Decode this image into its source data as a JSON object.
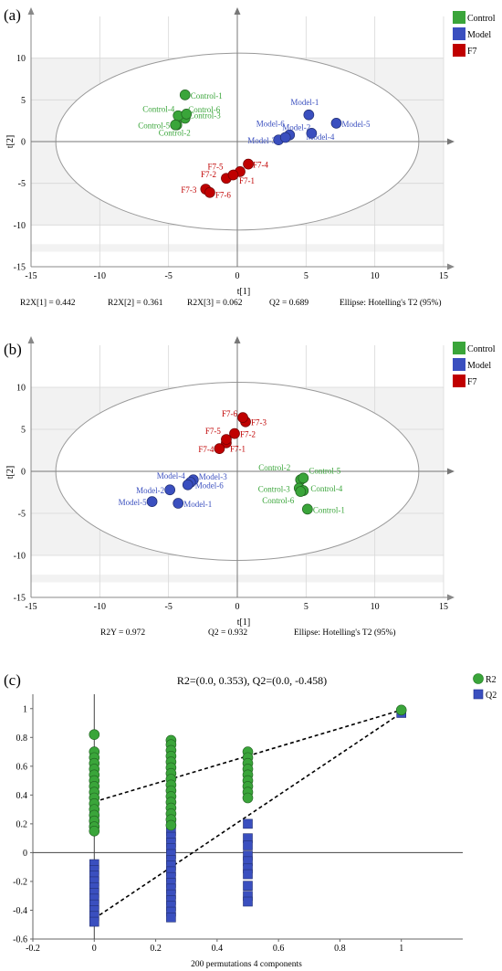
{
  "colors": {
    "control": "#3aa53a",
    "model": "#3a4fbf",
    "f7": "#c00000",
    "r2": "#3aa53a",
    "q2": "#3a4fbf"
  },
  "panels": {
    "a": {
      "label": "(a)",
      "legend": [
        "Control",
        "Model",
        "F7"
      ]
    },
    "b": {
      "label": "(b)",
      "legend": [
        "Control",
        "Model",
        "F7"
      ]
    },
    "c": {
      "label": "(c)"
    }
  },
  "chart_data": [
    {
      "id": "a",
      "type": "scatter",
      "xlabel": "t[1]",
      "ylabel": "t[2]",
      "xlim": [
        -15,
        15
      ],
      "ylim": [
        -15,
        15
      ],
      "xticks": [
        -15,
        -10,
        -5,
        0,
        5,
        10,
        15
      ],
      "yticks": [
        -15,
        -10,
        -5,
        0,
        5,
        10
      ],
      "ellipse": {
        "rx": 13.2,
        "ry": 10.6
      },
      "stats": [
        "R2X[1] = 0.442",
        "R2X[2] = 0.361",
        "R2X[3] = 0.062",
        "Q2 = 0.689",
        "Ellipse: Hotelling's T2 (95%)"
      ],
      "series": [
        {
          "name": "Control",
          "color": "#3aa53a",
          "points": [
            {
              "label": "Control-1",
              "x": -3.8,
              "y": 5.6
            },
            {
              "label": "Control-2",
              "x": -4.4,
              "y": 2.0
            },
            {
              "label": "Control-3",
              "x": -3.8,
              "y": 2.8
            },
            {
              "label": "Control-4",
              "x": -4.3,
              "y": 3.1
            },
            {
              "label": "Control-5",
              "x": -4.5,
              "y": 2.0
            },
            {
              "label": "Control-6",
              "x": -3.7,
              "y": 3.3
            }
          ]
        },
        {
          "name": "Model",
          "color": "#3a4fbf",
          "points": [
            {
              "label": "Model-1",
              "x": 5.2,
              "y": 3.2
            },
            {
              "label": "Model-2",
              "x": 3.8,
              "y": 0.8
            },
            {
              "label": "Model-3",
              "x": 3.0,
              "y": 0.2
            },
            {
              "label": "Model-4",
              "x": 5.4,
              "y": 1.0
            },
            {
              "label": "Model-5",
              "x": 7.2,
              "y": 2.2
            },
            {
              "label": "Model-6",
              "x": 3.5,
              "y": 0.5
            }
          ]
        },
        {
          "name": "F7",
          "color": "#c00000",
          "points": [
            {
              "label": "F7-1",
              "x": 0.2,
              "y": -3.6
            },
            {
              "label": "F7-2",
              "x": -0.8,
              "y": -4.4
            },
            {
              "label": "F7-3",
              "x": -2.3,
              "y": -5.7
            },
            {
              "label": "F7-4",
              "x": 0.8,
              "y": -2.7
            },
            {
              "label": "F7-5",
              "x": -0.3,
              "y": -4.0
            },
            {
              "label": "F7-6",
              "x": -2.0,
              "y": -6.1
            }
          ]
        }
      ]
    },
    {
      "id": "b",
      "type": "scatter",
      "xlabel": "t[1]",
      "ylabel": "t[2]",
      "xlim": [
        -15,
        15
      ],
      "ylim": [
        -15,
        15
      ],
      "xticks": [
        -15,
        -10,
        -5,
        0,
        5,
        10,
        15
      ],
      "yticks": [
        -15,
        -10,
        -5,
        0,
        5,
        10
      ],
      "ellipse": {
        "rx": 13.2,
        "ry": 10.6
      },
      "stats": [
        "R2Y = 0.972",
        "Q2 = 0.932",
        "Ellipse: Hotelling's T2 (95%)"
      ],
      "series": [
        {
          "name": "Control",
          "color": "#3aa53a",
          "points": [
            {
              "label": "Control-1",
              "x": 5.1,
              "y": -4.5
            },
            {
              "label": "Control-2",
              "x": 4.6,
              "y": -1.0
            },
            {
              "label": "Control-3",
              "x": 4.5,
              "y": -2.0
            },
            {
              "label": "Control-4",
              "x": 4.8,
              "y": -2.3
            },
            {
              "label": "Control-5",
              "x": 4.8,
              "y": -0.8
            },
            {
              "label": "Control-6",
              "x": 4.6,
              "y": -2.4
            }
          ]
        },
        {
          "name": "Model",
          "color": "#3a4fbf",
          "points": [
            {
              "label": "Model-1",
              "x": -4.3,
              "y": -3.8
            },
            {
              "label": "Model-2",
              "x": -4.9,
              "y": -2.2
            },
            {
              "label": "Model-3",
              "x": -3.2,
              "y": -1.0
            },
            {
              "label": "Model-4",
              "x": -3.4,
              "y": -1.3
            },
            {
              "label": "Model-5",
              "x": -6.2,
              "y": -3.6
            },
            {
              "label": "Model-6",
              "x": -3.6,
              "y": -1.6
            }
          ]
        },
        {
          "name": "F7",
          "color": "#c00000",
          "points": [
            {
              "label": "F7-1",
              "x": -0.8,
              "y": 3.4
            },
            {
              "label": "F7-2",
              "x": -0.2,
              "y": 4.5
            },
            {
              "label": "F7-3",
              "x": 0.6,
              "y": 5.9
            },
            {
              "label": "F7-4",
              "x": -1.3,
              "y": 2.7
            },
            {
              "label": "F7-5",
              "x": -0.8,
              "y": 3.8
            },
            {
              "label": "F7-6",
              "x": 0.4,
              "y": 6.4
            }
          ]
        }
      ]
    },
    {
      "id": "c",
      "type": "scatter",
      "title": "R2=(0.0, 0.353), Q2=(0.0, -0.458)",
      "xlabel": "200 permutations 4 components",
      "xlim": [
        -0.2,
        1.2
      ],
      "ylim": [
        -0.6,
        1.1
      ],
      "xticks": [
        -0.2,
        0,
        0.2,
        0.4,
        0.6,
        0.8,
        1
      ],
      "yticks": [
        -0.6,
        -0.4,
        -0.2,
        0,
        0.2,
        0.4,
        0.6,
        0.8,
        1
      ],
      "legend": [
        "R2",
        "Q2"
      ],
      "series": [
        {
          "name": "R2",
          "color": "#3aa53a",
          "marker": "circle",
          "points": [
            {
              "x": 0,
              "y": 0.82
            },
            {
              "x": 0,
              "y": 0.7
            },
            {
              "x": 0,
              "y": 0.66
            },
            {
              "x": 0,
              "y": 0.62
            },
            {
              "x": 0,
              "y": 0.58
            },
            {
              "x": 0,
              "y": 0.54
            },
            {
              "x": 0,
              "y": 0.5
            },
            {
              "x": 0,
              "y": 0.46
            },
            {
              "x": 0,
              "y": 0.42
            },
            {
              "x": 0,
              "y": 0.38
            },
            {
              "x": 0,
              "y": 0.34
            },
            {
              "x": 0,
              "y": 0.3
            },
            {
              "x": 0,
              "y": 0.26
            },
            {
              "x": 0,
              "y": 0.22
            },
            {
              "x": 0,
              "y": 0.18
            },
            {
              "x": 0,
              "y": 0.15
            },
            {
              "x": 0.25,
              "y": 0.78
            },
            {
              "x": 0.25,
              "y": 0.75
            },
            {
              "x": 0.25,
              "y": 0.71
            },
            {
              "x": 0.25,
              "y": 0.67
            },
            {
              "x": 0.25,
              "y": 0.63
            },
            {
              "x": 0.25,
              "y": 0.59
            },
            {
              "x": 0.25,
              "y": 0.55
            },
            {
              "x": 0.25,
              "y": 0.51
            },
            {
              "x": 0.25,
              "y": 0.47
            },
            {
              "x": 0.25,
              "y": 0.43
            },
            {
              "x": 0.25,
              "y": 0.39
            },
            {
              "x": 0.25,
              "y": 0.35
            },
            {
              "x": 0.25,
              "y": 0.31
            },
            {
              "x": 0.25,
              "y": 0.27
            },
            {
              "x": 0.25,
              "y": 0.23
            },
            {
              "x": 0.25,
              "y": 0.19
            },
            {
              "x": 0.5,
              "y": 0.7
            },
            {
              "x": 0.5,
              "y": 0.66
            },
            {
              "x": 0.5,
              "y": 0.62
            },
            {
              "x": 0.5,
              "y": 0.58
            },
            {
              "x": 0.5,
              "y": 0.54
            },
            {
              "x": 0.5,
              "y": 0.5
            },
            {
              "x": 0.5,
              "y": 0.46
            },
            {
              "x": 0.5,
              "y": 0.42
            },
            {
              "x": 0.5,
              "y": 0.38
            },
            {
              "x": 1,
              "y": 0.99
            }
          ]
        },
        {
          "name": "Q2",
          "color": "#3a4fbf",
          "marker": "square",
          "points": [
            {
              "x": 0,
              "y": 0.25
            },
            {
              "x": 0,
              "y": 0.2
            },
            {
              "x": 0,
              "y": -0.08
            },
            {
              "x": 0,
              "y": -0.12
            },
            {
              "x": 0,
              "y": -0.16
            },
            {
              "x": 0,
              "y": -0.2
            },
            {
              "x": 0,
              "y": -0.24
            },
            {
              "x": 0,
              "y": -0.28
            },
            {
              "x": 0,
              "y": -0.32
            },
            {
              "x": 0,
              "y": -0.36
            },
            {
              "x": 0,
              "y": -0.4
            },
            {
              "x": 0,
              "y": -0.44
            },
            {
              "x": 0,
              "y": -0.48
            },
            {
              "x": 0.25,
              "y": 0.2
            },
            {
              "x": 0.25,
              "y": 0.15
            },
            {
              "x": 0.25,
              "y": 0.11
            },
            {
              "x": 0.25,
              "y": 0.07
            },
            {
              "x": 0.25,
              "y": 0.03
            },
            {
              "x": 0.25,
              "y": -0.01
            },
            {
              "x": 0.25,
              "y": -0.05
            },
            {
              "x": 0.25,
              "y": -0.09
            },
            {
              "x": 0.25,
              "y": -0.13
            },
            {
              "x": 0.25,
              "y": -0.17
            },
            {
              "x": 0.25,
              "y": -0.21
            },
            {
              "x": 0.25,
              "y": -0.25
            },
            {
              "x": 0.25,
              "y": -0.29
            },
            {
              "x": 0.25,
              "y": -0.33
            },
            {
              "x": 0.25,
              "y": -0.37
            },
            {
              "x": 0.25,
              "y": -0.41
            },
            {
              "x": 0.25,
              "y": -0.45
            },
            {
              "x": 0.5,
              "y": 0.2
            },
            {
              "x": 0.5,
              "y": 0.1
            },
            {
              "x": 0.5,
              "y": 0.05
            },
            {
              "x": 0.5,
              "y": -0.02
            },
            {
              "x": 0.5,
              "y": -0.06
            },
            {
              "x": 0.5,
              "y": -0.11
            },
            {
              "x": 0.5,
              "y": -0.15
            },
            {
              "x": 0.5,
              "y": -0.23
            },
            {
              "x": 0.5,
              "y": -0.3
            },
            {
              "x": 0.5,
              "y": -0.34
            },
            {
              "x": 1,
              "y": 0.97
            }
          ]
        }
      ],
      "regression_lines": [
        {
          "name": "R2",
          "from": [
            0,
            0.353
          ],
          "to": [
            1,
            0.99
          ]
        },
        {
          "name": "Q2",
          "from": [
            0,
            -0.458
          ],
          "to": [
            1,
            0.97
          ]
        }
      ]
    }
  ]
}
